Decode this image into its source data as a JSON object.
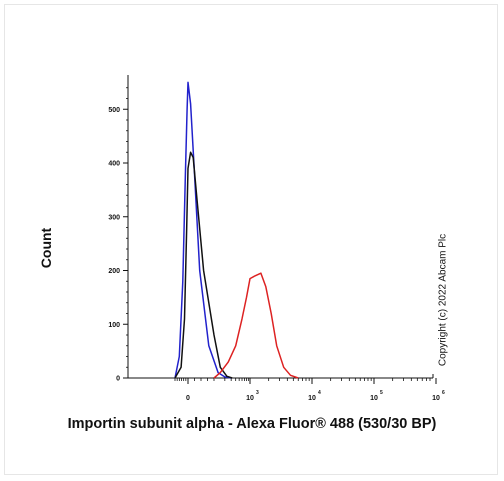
{
  "chart_data": {
    "type": "line",
    "xlabel": "Importin subunit alpha - Alexa Fluor® 488 (530/30 BP)",
    "ylabel": "Count",
    "annotation": "Copyright (c) 2022 Abcam Plc",
    "x_scale": "biexponential (log-like)",
    "xlim": [
      -150,
      1000000
    ],
    "ylim": [
      0,
      560
    ],
    "y_ticks": [
      0,
      100,
      200,
      300,
      400,
      500
    ],
    "x_ticks": [
      {
        "value": 0,
        "base": "0",
        "exp": ""
      },
      {
        "value": 1000,
        "base": "10",
        "exp": "3"
      },
      {
        "value": 10000,
        "base": "10",
        "exp": "4"
      },
      {
        "value": 100000,
        "base": "10",
        "exp": "5"
      },
      {
        "value": 1000000,
        "base": "10",
        "exp": "6"
      }
    ],
    "grid": false,
    "legend": "none",
    "series": [
      {
        "color": "#2222cc",
        "x": [
          -150,
          -100,
          -60,
          -30,
          -10,
          0,
          10,
          25,
          45,
          80,
          130,
          200,
          300
        ],
        "y": [
          0,
          40,
          180,
          380,
          500,
          550,
          510,
          380,
          200,
          60,
          10,
          2,
          0
        ]
      },
      {
        "color": "#111111",
        "x": [
          -150,
          -80,
          -40,
          -15,
          0,
          10,
          20,
          35,
          60,
          100,
          150,
          230,
          320
        ],
        "y": [
          0,
          20,
          110,
          280,
          390,
          420,
          410,
          330,
          200,
          80,
          20,
          3,
          0
        ]
      },
      {
        "color": "#dd2222",
        "x": [
          100,
          150,
          250,
          400,
          600,
          800,
          1000,
          1200,
          1500,
          1800,
          2200,
          2700,
          3500,
          4500,
          6000
        ],
        "y": [
          0,
          10,
          30,
          60,
          110,
          150,
          185,
          190,
          195,
          170,
          120,
          60,
          20,
          5,
          0
        ]
      }
    ]
  }
}
